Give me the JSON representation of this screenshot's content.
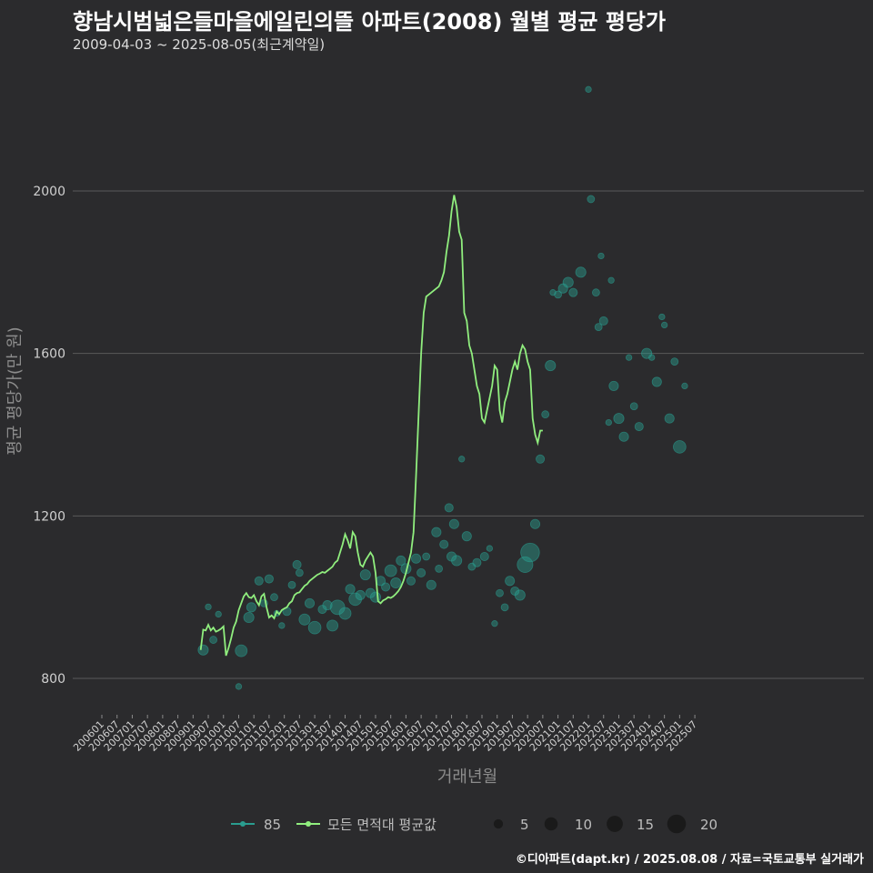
{
  "header": {
    "title": "향남시범넓은들마을에일린의뜰 아파트(2008) 월별 평균 평당가",
    "subtitle": "2009-04-03 ~ 2025-08-05(최근계약일)"
  },
  "footer": {
    "credit": "©디아파트(dapt.kr) / 2025.08.08 / 자료=국토교통부 실거래가"
  },
  "colors": {
    "background": "#2b2b2d",
    "grid": "#5a5a5a",
    "avg_line": "#90ee7e",
    "points": "#2a9d8f"
  },
  "chart_data": {
    "type": "line",
    "xlabel": "거래년월",
    "ylabel": "평균 평당가(만 원)",
    "ylim": [
      700,
      2270
    ],
    "yticks": [
      800,
      1200,
      1600,
      2000
    ],
    "x_tick_labels": [
      "200601",
      "200607",
      "200701",
      "200707",
      "200801",
      "200807",
      "200901",
      "200907",
      "201001",
      "201007",
      "201101",
      "201107",
      "201201",
      "201207",
      "201301",
      "201307",
      "201401",
      "201407",
      "201501",
      "201507",
      "201601",
      "201607",
      "201701",
      "201707",
      "201801",
      "201807",
      "201901",
      "201907",
      "202001",
      "202007",
      "202101",
      "202107",
      "202201",
      "202207",
      "202301",
      "202307",
      "202401",
      "202407",
      "202501",
      "202507"
    ],
    "series": [
      {
        "name": "모든 면적대 평균값",
        "x_start": "2009-04",
        "values": [
          870,
          920,
          918,
          932,
          918,
          925,
          915,
          918,
          922,
          928,
          856,
          875,
          898,
          925,
          940,
          968,
          985,
          1002,
          1010,
          1000,
          998,
          1005,
          990,
          980,
          1002,
          1008,
          975,
          950,
          955,
          948,
          965,
          958,
          968,
          972,
          975,
          985,
          990,
          1005,
          1010,
          1012,
          1020,
          1028,
          1032,
          1040,
          1045,
          1050,
          1055,
          1058,
          1062,
          1060,
          1065,
          1070,
          1075,
          1085,
          1090,
          1110,
          1130,
          1155,
          1140,
          1120,
          1160,
          1150,
          1110,
          1080,
          1075,
          1090,
          1100,
          1110,
          1100,
          1060,
          990,
          985,
          992,
          995,
          1000,
          998,
          1002,
          1008,
          1015,
          1025,
          1040,
          1060,
          1085,
          1110,
          1160,
          1300,
          1450,
          1600,
          1700,
          1740,
          1745,
          1750,
          1755,
          1760,
          1765,
          1780,
          1800,
          1850,
          1890,
          1950,
          1990,
          1960,
          1900,
          1880,
          1700,
          1680,
          1620,
          1600,
          1560,
          1520,
          1500,
          1440,
          1430,
          1460,
          1490,
          1520,
          1570,
          1560,
          1460,
          1430,
          1480,
          1500,
          1530,
          1560,
          1580,
          1560,
          1600,
          1620,
          1610,
          1580,
          1560,
          1440,
          1400,
          1380,
          1410,
          1410
        ]
      }
    ],
    "scatter_series": {
      "name": "85",
      "points": [
        {
          "x": "2009-05",
          "y": 870,
          "size": 6
        },
        {
          "x": "2009-07",
          "y": 976,
          "size": 2
        },
        {
          "x": "2009-09",
          "y": 895,
          "size": 3
        },
        {
          "x": "2009-11",
          "y": 958,
          "size": 2
        },
        {
          "x": "2010-07",
          "y": 780,
          "size": 2
        },
        {
          "x": "2010-08",
          "y": 868,
          "size": 8
        },
        {
          "x": "2010-11",
          "y": 950,
          "size": 6
        },
        {
          "x": "2010-12",
          "y": 975,
          "size": 5
        },
        {
          "x": "2011-03",
          "y": 1040,
          "size": 4
        },
        {
          "x": "2011-05",
          "y": 985,
          "size": 3
        },
        {
          "x": "2011-07",
          "y": 1045,
          "size": 4
        },
        {
          "x": "2011-09",
          "y": 1000,
          "size": 3
        },
        {
          "x": "2011-10",
          "y": 960,
          "size": 2
        },
        {
          "x": "2011-12",
          "y": 930,
          "size": 2
        },
        {
          "x": "2012-02",
          "y": 965,
          "size": 4
        },
        {
          "x": "2012-04",
          "y": 1030,
          "size": 3
        },
        {
          "x": "2012-06",
          "y": 1080,
          "size": 4
        },
        {
          "x": "2012-07",
          "y": 1060,
          "size": 3
        },
        {
          "x": "2012-09",
          "y": 945,
          "size": 7
        },
        {
          "x": "2012-11",
          "y": 985,
          "size": 5
        },
        {
          "x": "2013-01",
          "y": 925,
          "size": 9
        },
        {
          "x": "2013-04",
          "y": 970,
          "size": 4
        },
        {
          "x": "2013-06",
          "y": 980,
          "size": 5
        },
        {
          "x": "2013-08",
          "y": 930,
          "size": 7
        },
        {
          "x": "2013-10",
          "y": 975,
          "size": 12
        },
        {
          "x": "2014-01",
          "y": 960,
          "size": 8
        },
        {
          "x": "2014-03",
          "y": 1020,
          "size": 5
        },
        {
          "x": "2014-05",
          "y": 995,
          "size": 9
        },
        {
          "x": "2014-07",
          "y": 1005,
          "size": 5
        },
        {
          "x": "2014-09",
          "y": 1055,
          "size": 6
        },
        {
          "x": "2014-11",
          "y": 1010,
          "size": 5
        },
        {
          "x": "2015-01",
          "y": 1000,
          "size": 6
        },
        {
          "x": "2015-03",
          "y": 1040,
          "size": 5
        },
        {
          "x": "2015-05",
          "y": 1025,
          "size": 4
        },
        {
          "x": "2015-07",
          "y": 1065,
          "size": 8
        },
        {
          "x": "2015-09",
          "y": 1035,
          "size": 6
        },
        {
          "x": "2015-11",
          "y": 1090,
          "size": 5
        },
        {
          "x": "2016-01",
          "y": 1070,
          "size": 6
        },
        {
          "x": "2016-03",
          "y": 1040,
          "size": 4
        },
        {
          "x": "2016-05",
          "y": 1095,
          "size": 5
        },
        {
          "x": "2016-07",
          "y": 1060,
          "size": 4
        },
        {
          "x": "2016-09",
          "y": 1100,
          "size": 3
        },
        {
          "x": "2016-11",
          "y": 1030,
          "size": 5
        },
        {
          "x": "2017-01",
          "y": 1160,
          "size": 5
        },
        {
          "x": "2017-02",
          "y": 1070,
          "size": 3
        },
        {
          "x": "2017-04",
          "y": 1130,
          "size": 4
        },
        {
          "x": "2017-06",
          "y": 1220,
          "size": 4
        },
        {
          "x": "2017-07",
          "y": 1100,
          "size": 5
        },
        {
          "x": "2017-08",
          "y": 1180,
          "size": 5
        },
        {
          "x": "2017-09",
          "y": 1090,
          "size": 6
        },
        {
          "x": "2017-11",
          "y": 1340,
          "size": 2
        },
        {
          "x": "2018-01",
          "y": 1150,
          "size": 5
        },
        {
          "x": "2018-03",
          "y": 1075,
          "size": 3
        },
        {
          "x": "2018-05",
          "y": 1085,
          "size": 4
        },
        {
          "x": "2018-08",
          "y": 1100,
          "size": 4
        },
        {
          "x": "2018-10",
          "y": 1120,
          "size": 2
        },
        {
          "x": "2018-12",
          "y": 935,
          "size": 2
        },
        {
          "x": "2019-02",
          "y": 1010,
          "size": 3
        },
        {
          "x": "2019-04",
          "y": 975,
          "size": 3
        },
        {
          "x": "2019-06",
          "y": 1040,
          "size": 5
        },
        {
          "x": "2019-08",
          "y": 1015,
          "size": 4
        },
        {
          "x": "2019-10",
          "y": 1005,
          "size": 6
        },
        {
          "x": "2019-12",
          "y": 1080,
          "size": 14
        },
        {
          "x": "2020-02",
          "y": 1110,
          "size": 20
        },
        {
          "x": "2020-04",
          "y": 1180,
          "size": 5
        },
        {
          "x": "2020-06",
          "y": 1340,
          "size": 4
        },
        {
          "x": "2020-08",
          "y": 1450,
          "size": 3
        },
        {
          "x": "2020-10",
          "y": 1570,
          "size": 6
        },
        {
          "x": "2020-11",
          "y": 1750,
          "size": 2
        },
        {
          "x": "2021-01",
          "y": 1745,
          "size": 3
        },
        {
          "x": "2021-03",
          "y": 1760,
          "size": 5
        },
        {
          "x": "2021-05",
          "y": 1775,
          "size": 6
        },
        {
          "x": "2021-07",
          "y": 1750,
          "size": 4
        },
        {
          "x": "2021-10",
          "y": 1800,
          "size": 6
        },
        {
          "x": "2022-01",
          "y": 2250,
          "size": 2
        },
        {
          "x": "2022-02",
          "y": 1980,
          "size": 3
        },
        {
          "x": "2022-04",
          "y": 1750,
          "size": 3
        },
        {
          "x": "2022-05",
          "y": 1665,
          "size": 3
        },
        {
          "x": "2022-06",
          "y": 1840,
          "size": 2
        },
        {
          "x": "2022-07",
          "y": 1680,
          "size": 4
        },
        {
          "x": "2022-09",
          "y": 1430,
          "size": 2
        },
        {
          "x": "2022-10",
          "y": 1780,
          "size": 2
        },
        {
          "x": "2022-11",
          "y": 1520,
          "size": 5
        },
        {
          "x": "2023-01",
          "y": 1440,
          "size": 6
        },
        {
          "x": "2023-03",
          "y": 1395,
          "size": 5
        },
        {
          "x": "2023-05",
          "y": 1590,
          "size": 2
        },
        {
          "x": "2023-07",
          "y": 1470,
          "size": 3
        },
        {
          "x": "2023-09",
          "y": 1420,
          "size": 4
        },
        {
          "x": "2023-12",
          "y": 1600,
          "size": 6
        },
        {
          "x": "2024-02",
          "y": 1590,
          "size": 2
        },
        {
          "x": "2024-04",
          "y": 1530,
          "size": 5
        },
        {
          "x": "2024-06",
          "y": 1690,
          "size": 2
        },
        {
          "x": "2024-07",
          "y": 1670,
          "size": 2
        },
        {
          "x": "2024-09",
          "y": 1440,
          "size": 5
        },
        {
          "x": "2024-11",
          "y": 1580,
          "size": 3
        },
        {
          "x": "2025-01",
          "y": 1370,
          "size": 9
        },
        {
          "x": "2025-03",
          "y": 1520,
          "size": 2
        }
      ]
    },
    "legend": {
      "line_items": [
        "85",
        "모든 면적대 평균값"
      ],
      "size_items": [
        "5",
        "10",
        "15",
        "20"
      ],
      "size_values": [
        5,
        10,
        15,
        20
      ],
      "placement": "bottom"
    }
  }
}
